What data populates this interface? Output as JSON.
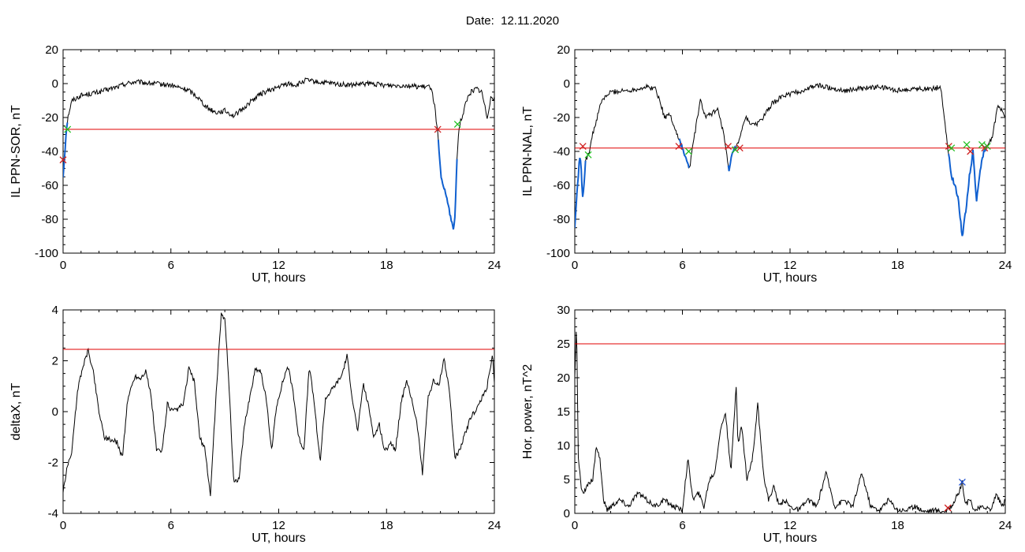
{
  "header": {
    "date_label": "Date:",
    "date_value": "12.11.2020"
  },
  "colors": {
    "series": "#000000",
    "threshold": "#e00000",
    "highlight": "#1060d0",
    "marker_start": "#d02020",
    "marker_end": "#20c020",
    "marker_blue": "#2050d0"
  },
  "chart_data": [
    {
      "type": "line",
      "title": "",
      "xlabel": "UT, hours",
      "ylabel": "IL PPN-SOR, nT",
      "xlim": [
        0,
        24
      ],
      "ylim": [
        -100,
        20
      ],
      "xticks": [
        0,
        6,
        12,
        18,
        24
      ],
      "yticks": [
        -100,
        -80,
        -60,
        -40,
        -20,
        0,
        20
      ],
      "threshold": -27,
      "series": [
        {
          "x": [
            0,
            0.1,
            0.2,
            0.3,
            0.5,
            1,
            2,
            3,
            3.5,
            4,
            5,
            6,
            7,
            7.5,
            8,
            8.5,
            9,
            9.5,
            10,
            10.5,
            11,
            12,
            12.5,
            13,
            13.5,
            14,
            15,
            16,
            17,
            18,
            19,
            20,
            20.5,
            20.7,
            20.85,
            20.95,
            21.1,
            21.3,
            21.5,
            21.7,
            21.8,
            21.9,
            22.0,
            22.1,
            22.2,
            22.4,
            22.6,
            22.8,
            23.0,
            23.3,
            23.6,
            23.8,
            24
          ],
          "values": [
            -55,
            -40,
            -25,
            -18,
            -10,
            -7,
            -5,
            -2,
            0,
            1,
            0,
            -1,
            -4,
            -8,
            -14,
            -17,
            -16,
            -19,
            -15,
            -10,
            -6,
            -2,
            0,
            -1,
            2,
            1,
            0,
            -1,
            0,
            -1,
            -1,
            -2,
            -2,
            -15,
            -30,
            -45,
            -60,
            -65,
            -75,
            -86,
            -80,
            -50,
            -30,
            -22,
            -20,
            -12,
            -6,
            -4,
            -3,
            -5,
            -20,
            -8,
            -9
          ]
        }
      ],
      "highlight_intervals": [
        [
          0,
          0.25
        ],
        [
          20.85,
          21.95
        ]
      ],
      "markers": [
        {
          "x": 0.0,
          "y": -45,
          "kind": "start"
        },
        {
          "x": 0.25,
          "y": -27,
          "kind": "end"
        },
        {
          "x": 20.85,
          "y": -27,
          "kind": "start"
        },
        {
          "x": 21.95,
          "y": -24,
          "kind": "end"
        }
      ]
    },
    {
      "type": "line",
      "title": "",
      "xlabel": "UT, hours",
      "ylabel": "IL PPN-NAL, nT",
      "xlim": [
        0,
        24
      ],
      "ylim": [
        -100,
        20
      ],
      "xticks": [
        0,
        6,
        12,
        18,
        24
      ],
      "yticks": [
        -100,
        -80,
        -60,
        -40,
        -20,
        0,
        20
      ],
      "threshold": -38,
      "series": [
        {
          "x": [
            0,
            0.15,
            0.3,
            0.45,
            0.6,
            0.8,
            1.0,
            1.5,
            2,
            3,
            4,
            4.5,
            4.8,
            5,
            5.3,
            5.7,
            6,
            6.2,
            6.4,
            6.6,
            7,
            7.3,
            7.6,
            8,
            8.3,
            8.6,
            8.8,
            9,
            9.2,
            9.5,
            10,
            10.5,
            11,
            11.5,
            12,
            12.5,
            13,
            13.5,
            14,
            15,
            16,
            17,
            18,
            19,
            20,
            20.4,
            20.6,
            20.8,
            21.0,
            21.2,
            21.4,
            21.6,
            21.8,
            22.0,
            22.2,
            22.4,
            22.6,
            22.8,
            23.0,
            23.3,
            23.6,
            24
          ],
          "values": [
            -85,
            -60,
            -40,
            -70,
            -45,
            -40,
            -30,
            -10,
            -5,
            -4,
            -2,
            -3,
            -12,
            -20,
            -18,
            -30,
            -38,
            -45,
            -50,
            -35,
            -10,
            -20,
            -18,
            -15,
            -30,
            -52,
            -40,
            -38,
            -33,
            -20,
            -25,
            -20,
            -12,
            -8,
            -6,
            -5,
            -3,
            -1,
            -2,
            -4,
            -3,
            -2,
            -4,
            -3,
            -3,
            -2,
            -20,
            -38,
            -55,
            -60,
            -70,
            -90,
            -75,
            -55,
            -40,
            -70,
            -50,
            -40,
            -38,
            -30,
            -12,
            -20
          ]
        }
      ],
      "highlight_intervals": [
        [
          0,
          0.6
        ],
        [
          5.8,
          6.4
        ],
        [
          8.55,
          9.0
        ],
        [
          20.8,
          23.0
        ]
      ],
      "markers": [
        {
          "x": 0.45,
          "y": -37,
          "kind": "start"
        },
        {
          "x": 0.75,
          "y": -42,
          "kind": "end"
        },
        {
          "x": 5.8,
          "y": -37,
          "kind": "start"
        },
        {
          "x": 6.35,
          "y": -40,
          "kind": "end"
        },
        {
          "x": 8.55,
          "y": -37,
          "kind": "start"
        },
        {
          "x": 8.95,
          "y": -39,
          "kind": "end"
        },
        {
          "x": 9.2,
          "y": -38,
          "kind": "start"
        },
        {
          "x": 20.85,
          "y": -37,
          "kind": "start"
        },
        {
          "x": 21.0,
          "y": -38,
          "kind": "end"
        },
        {
          "x": 21.85,
          "y": -36,
          "kind": "end"
        },
        {
          "x": 22.05,
          "y": -40,
          "kind": "start"
        },
        {
          "x": 22.7,
          "y": -36,
          "kind": "end"
        },
        {
          "x": 22.85,
          "y": -38,
          "kind": "start"
        },
        {
          "x": 23.0,
          "y": -37,
          "kind": "end"
        }
      ]
    },
    {
      "type": "line",
      "title": "",
      "xlabel": "UT, hours",
      "ylabel": "deltaX, nT",
      "xlim": [
        0,
        24
      ],
      "ylim": [
        -4,
        4
      ],
      "xticks": [
        0,
        6,
        12,
        18,
        24
      ],
      "yticks": [
        -4,
        -2,
        0,
        2,
        4
      ],
      "threshold": 2.45,
      "series": [
        {
          "x": [
            0,
            0.2,
            0.5,
            0.8,
            1.1,
            1.4,
            1.7,
            2.0,
            2.3,
            2.6,
            3.0,
            3.3,
            3.6,
            4.0,
            4.3,
            4.6,
            4.9,
            5.2,
            5.5,
            5.8,
            6.1,
            6.4,
            6.7,
            7.0,
            7.3,
            7.6,
            7.9,
            8.2,
            8.5,
            8.8,
            9.0,
            9.2,
            9.5,
            9.8,
            10.1,
            10.4,
            10.7,
            11.0,
            11.3,
            11.6,
            11.9,
            12.2,
            12.5,
            12.8,
            13.1,
            13.4,
            13.7,
            14.0,
            14.3,
            14.6,
            14.9,
            15.2,
            15.5,
            15.8,
            16.1,
            16.4,
            16.7,
            17.0,
            17.3,
            17.6,
            17.9,
            18.2,
            18.5,
            18.8,
            19.1,
            19.4,
            19.7,
            20.0,
            20.3,
            20.6,
            20.9,
            21.2,
            21.5,
            21.8,
            22.1,
            22.4,
            22.7,
            23.0,
            23.3,
            23.6,
            23.9,
            24
          ],
          "values": [
            -3.2,
            -2.3,
            -1.5,
            0.8,
            1.8,
            2.4,
            1.5,
            0.0,
            -1.0,
            -1.1,
            -1.2,
            -1.8,
            0.5,
            1.4,
            1.3,
            1.6,
            0.6,
            -1.5,
            -1.6,
            0.3,
            0.0,
            0.1,
            0.3,
            1.7,
            1.2,
            -1.0,
            -1.5,
            -3.3,
            0.5,
            3.8,
            3.7,
            1.5,
            -2.8,
            -2.6,
            -0.5,
            0.6,
            1.7,
            1.6,
            0.5,
            -1.5,
            0.3,
            1.1,
            1.8,
            0.8,
            -1.0,
            -1.5,
            1.8,
            0.2,
            -2.0,
            0.5,
            0.8,
            1.1,
            1.4,
            2.2,
            0.5,
            -0.8,
            1.1,
            0.2,
            -1.0,
            -0.5,
            -1.6,
            -1.2,
            -1.5,
            0.3,
            1.2,
            0.5,
            -0.5,
            -2.4,
            0.5,
            1.2,
            1.0,
            2.1,
            0.8,
            -1.8,
            -1.5,
            -0.8,
            -0.2,
            0.1,
            0.5,
            1.0,
            2.2,
            1.1
          ]
        }
      ],
      "highlight_intervals": [],
      "markers": []
    },
    {
      "type": "line",
      "title": "",
      "xlabel": "UT, hours",
      "ylabel": "Hor. power, nT^2",
      "xlim": [
        0,
        24
      ],
      "ylim": [
        0,
        30
      ],
      "xticks": [
        0,
        6,
        12,
        18,
        24
      ],
      "yticks": [
        0,
        5,
        10,
        15,
        20,
        25,
        30
      ],
      "threshold": 25,
      "series": [
        {
          "x": [
            0,
            0.1,
            0.2,
            0.35,
            0.5,
            0.7,
            1.0,
            1.2,
            1.4,
            1.6,
            1.8,
            2.0,
            2.5,
            3.0,
            3.5,
            4.0,
            4.5,
            5.0,
            5.5,
            6.0,
            6.3,
            6.6,
            6.9,
            7.2,
            7.5,
            7.8,
            8.1,
            8.4,
            8.7,
            9.0,
            9.1,
            9.3,
            9.6,
            9.9,
            10.2,
            10.5,
            10.8,
            11.1,
            11.4,
            11.7,
            12.0,
            12.5,
            13.0,
            13.5,
            14.0,
            14.5,
            15.0,
            15.5,
            16.0,
            16.5,
            17.0,
            17.5,
            18.0,
            18.5,
            19.0,
            19.5,
            20.0,
            20.5,
            20.8,
            21.1,
            21.4,
            21.6,
            21.8,
            22.0,
            22.3,
            22.6,
            22.9,
            23.2,
            23.5,
            23.8,
            24
          ],
          "values": [
            20,
            28,
            8,
            4,
            3,
            4,
            5,
            10,
            8,
            2,
            0.5,
            1,
            2,
            1,
            3,
            2,
            1,
            2,
            1,
            0.5,
            8,
            2,
            3,
            1,
            5,
            6,
            12,
            15,
            6,
            19,
            10,
            13,
            5,
            8,
            16,
            6,
            2,
            4,
            1,
            2,
            1,
            0.5,
            2,
            1,
            6,
            1,
            2,
            1,
            6,
            1,
            0.5,
            2,
            0.5,
            0.5,
            1,
            0.3,
            0.5,
            0.3,
            0.5,
            1.5,
            3,
            4.5,
            1.2,
            2,
            0.5,
            0.8,
            1,
            0.5,
            3,
            1,
            2
          ]
        }
      ],
      "highlight_intervals": [],
      "markers": [
        {
          "x": 20.8,
          "y": 0.8,
          "kind": "start"
        },
        {
          "x": 21.6,
          "y": 4.6,
          "kind": "blue"
        }
      ]
    }
  ]
}
